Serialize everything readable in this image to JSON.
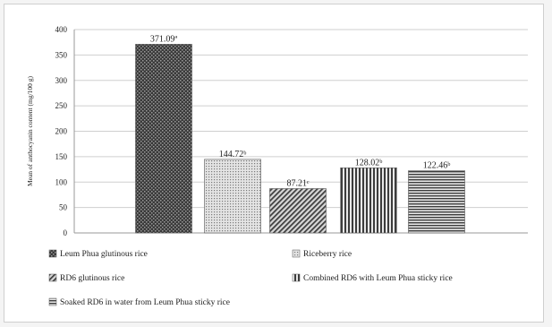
{
  "chart_data": {
    "type": "bar",
    "title": "",
    "xlabel": "",
    "ylabel": "Mean of anthocyanin content (mg/100 g)",
    "ylim": [
      0,
      400
    ],
    "yticks": [
      "0",
      "50",
      "100",
      "150",
      "200",
      "250",
      "300",
      "350",
      "400"
    ],
    "grid": true,
    "legend_position": "bottom",
    "categories": [
      "Leum Phua glutinous rice",
      "Riceberry rice",
      "RD6 glutinous rice",
      "Combined RD6 with Leum Phua sticky rice",
      "Soaked RD6 in water from Leum Phua sticky rice"
    ],
    "values": [
      371.09,
      144.72,
      87.21,
      128.02,
      122.46
    ],
    "data_labels": [
      "371.09ª",
      "144.72ᵇ",
      "87.21ᶜ",
      "128.02ᵇ",
      "122.46ᵇ"
    ],
    "colors": [
      "#3a3a3a",
      "#b5b5b5",
      "#8c8c8c",
      "#6e6e6e",
      "#7a7a7a"
    ]
  }
}
